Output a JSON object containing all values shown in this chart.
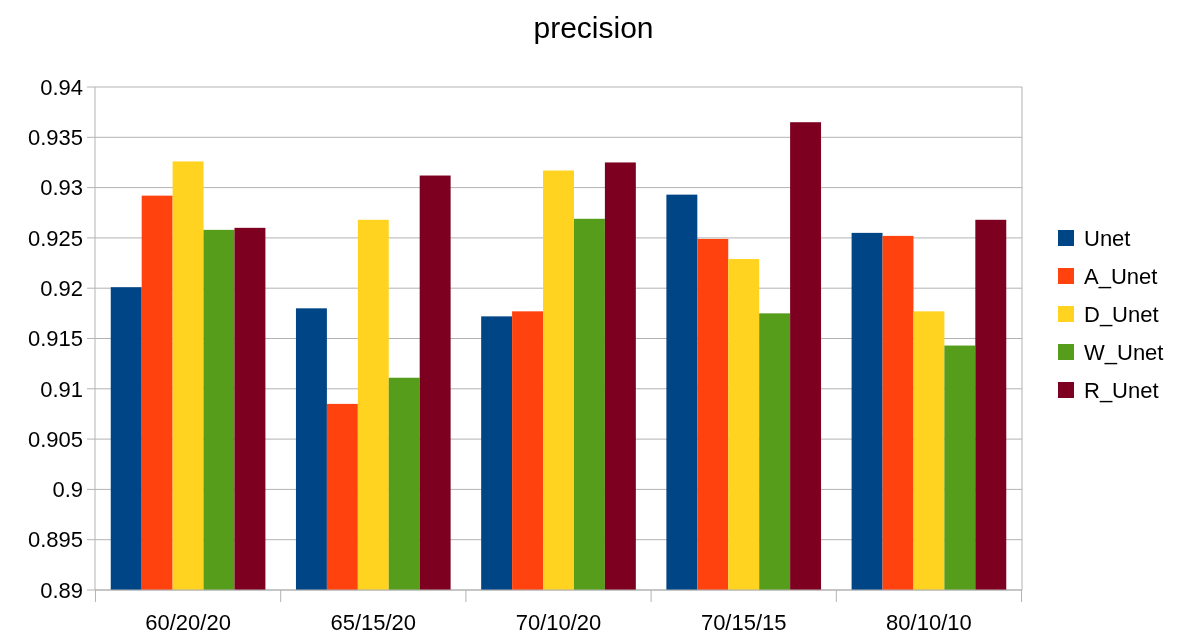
{
  "chart_data": {
    "type": "bar",
    "title": "precision",
    "categories": [
      "60/20/20",
      "65/15/20",
      "70/10/20",
      "70/15/15",
      "80/10/10"
    ],
    "series": [
      {
        "name": "Unet",
        "color": "#004586",
        "values": [
          0.9201,
          0.918,
          0.9172,
          0.9293,
          0.9255
        ]
      },
      {
        "name": "A_Unet",
        "color": "#ff420e",
        "values": [
          0.9292,
          0.9085,
          0.9177,
          0.9249,
          0.9252
        ]
      },
      {
        "name": "D_Unet",
        "color": "#ffd320",
        "values": [
          0.9326,
          0.9268,
          0.9317,
          0.9229,
          0.9177
        ]
      },
      {
        "name": "W_Unet",
        "color": "#579d1c",
        "values": [
          0.9258,
          0.9111,
          0.9269,
          0.9175,
          0.9143
        ]
      },
      {
        "name": "R_Unet",
        "color": "#7e0021",
        "values": [
          0.926,
          0.9312,
          0.9325,
          0.9365,
          0.9268
        ]
      }
    ],
    "ylim": [
      0.89,
      0.94
    ],
    "yticks": [
      0.89,
      0.895,
      0.9,
      0.905,
      0.91,
      0.915,
      0.92,
      0.925,
      0.93,
      0.935,
      0.94
    ],
    "grid": "y",
    "legend": "right"
  }
}
